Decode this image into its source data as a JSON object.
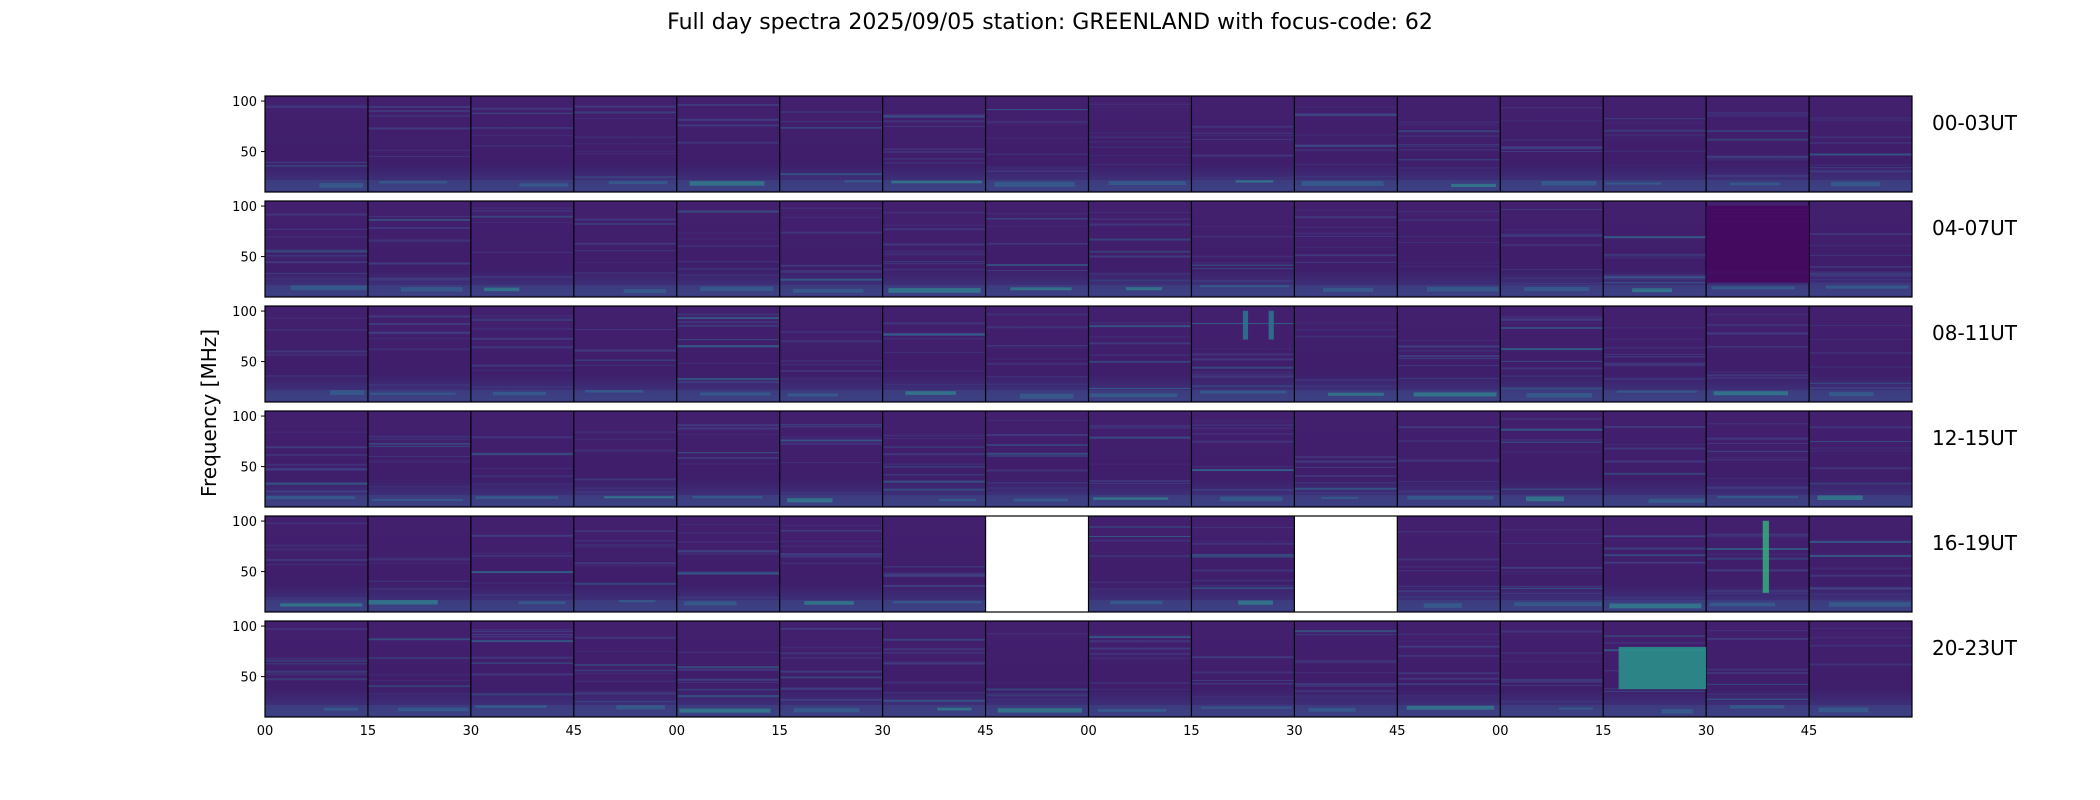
{
  "chart_data": {
    "type": "heatmap",
    "title": "Full day spectra 2025/09/05 station: GREENLAND with focus-code: 62",
    "ylabel": "Frequency [MHz]",
    "ylim": [
      10,
      105
    ],
    "y_ticks": [
      "100",
      "50"
    ],
    "x_ticks": [
      "00",
      "15",
      "30",
      "45",
      "00",
      "15",
      "30",
      "45",
      "00",
      "15",
      "30",
      "45",
      "00",
      "15",
      "30",
      "45"
    ],
    "rows": [
      {
        "label": "00-03UT",
        "missing_panels": []
      },
      {
        "label": "04-07UT",
        "missing_panels": []
      },
      {
        "label": "08-11UT",
        "missing_panels": []
      },
      {
        "label": "12-15UT",
        "missing_panels": []
      },
      {
        "label": "16-19UT",
        "missing_panels": [
          7,
          10
        ]
      },
      {
        "label": "20-23UT",
        "missing_panels": []
      }
    ],
    "panels_per_row": 16,
    "colormap": "viridis",
    "colors": {
      "background": "#3f1e6b",
      "dark": "#45085f",
      "line": "#414487",
      "bright": "#2a9d8f",
      "hot": "#35c37a"
    }
  }
}
